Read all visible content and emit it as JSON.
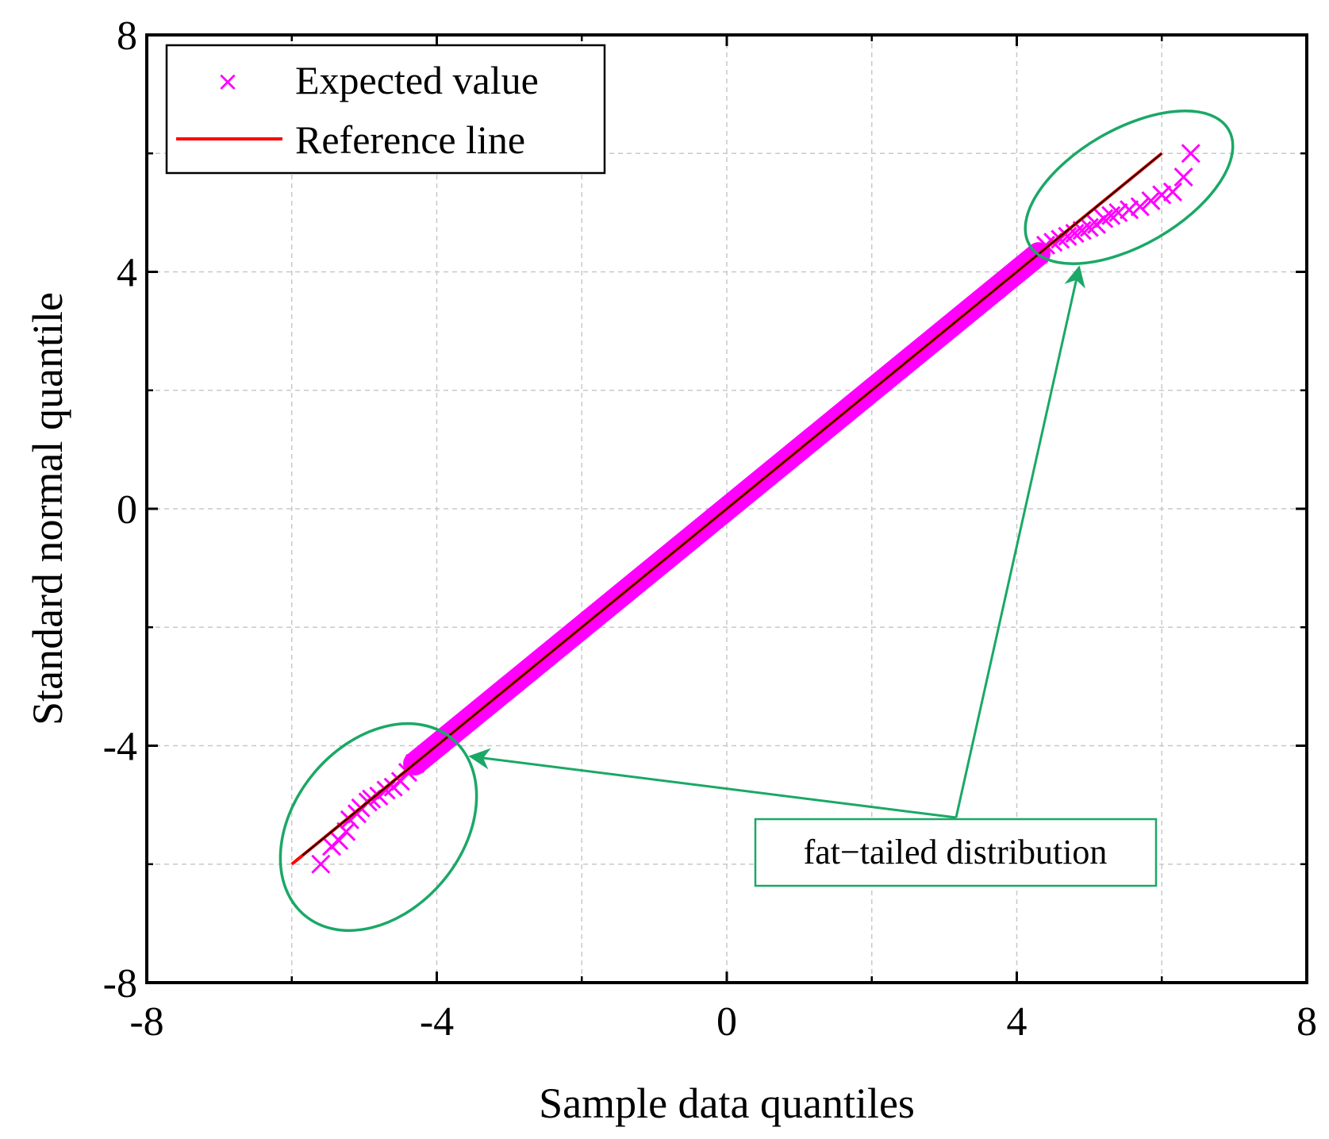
{
  "chart_data": {
    "type": "scatter",
    "title": "",
    "xlabel": "Sample data quantiles",
    "ylabel": "Standard normal quantile",
    "xlim": [
      -8,
      8
    ],
    "ylim": [
      -8,
      8
    ],
    "xticks": [
      -8,
      -4,
      0,
      4,
      8
    ],
    "yticks": [
      -8,
      -4,
      0,
      4,
      8
    ],
    "xtick_labels": [
      "-8",
      "-4",
      "0",
      "4",
      "8"
    ],
    "ytick_labels": [
      "-8",
      "-4",
      "0",
      "4",
      "8"
    ],
    "grid": true,
    "legend_position": "top-left",
    "series": [
      {
        "name": "Expected value",
        "kind": "marker-x",
        "color": "#ff00ff",
        "points": [
          [
            -5.6,
            -6.0
          ],
          [
            -5.45,
            -5.7
          ],
          [
            -5.35,
            -5.6
          ],
          [
            -5.25,
            -5.45
          ],
          [
            -5.2,
            -5.25
          ],
          [
            -5.1,
            -5.15
          ],
          [
            -5.05,
            -5.05
          ],
          [
            -4.95,
            -4.95
          ],
          [
            -4.9,
            -4.9
          ],
          [
            -4.8,
            -4.85
          ],
          [
            -4.7,
            -4.75
          ],
          [
            -4.6,
            -4.7
          ],
          [
            -4.5,
            -4.6
          ],
          [
            -4.4,
            -4.45
          ],
          [
            -4.3,
            -4.3
          ],
          [
            4.3,
            4.3
          ],
          [
            4.4,
            4.45
          ],
          [
            4.5,
            4.5
          ],
          [
            4.6,
            4.55
          ],
          [
            4.7,
            4.6
          ],
          [
            4.8,
            4.65
          ],
          [
            4.9,
            4.7
          ],
          [
            5.0,
            4.75
          ],
          [
            5.1,
            4.8
          ],
          [
            5.2,
            4.9
          ],
          [
            5.3,
            4.95
          ],
          [
            5.4,
            5.0
          ],
          [
            5.55,
            5.05
          ],
          [
            5.7,
            5.1
          ],
          [
            5.85,
            5.2
          ],
          [
            6.0,
            5.3
          ],
          [
            6.15,
            5.35
          ],
          [
            6.3,
            5.6
          ],
          [
            6.4,
            6.0
          ]
        ],
        "core_range": [
          -4.3,
          4.3
        ]
      },
      {
        "name": "Reference line",
        "kind": "line",
        "color": "#ff0000",
        "points": [
          [
            -6,
            -6
          ],
          [
            6,
            6
          ]
        ]
      }
    ],
    "annotations": [
      {
        "text": "fat−tailed distribution",
        "color": "#1aa866",
        "targets": [
          "lower-tail",
          "upper-tail"
        ]
      }
    ]
  },
  "legend": {
    "items": [
      {
        "label": "Expected value",
        "symbol": "×"
      },
      {
        "label": "Reference line"
      }
    ]
  }
}
